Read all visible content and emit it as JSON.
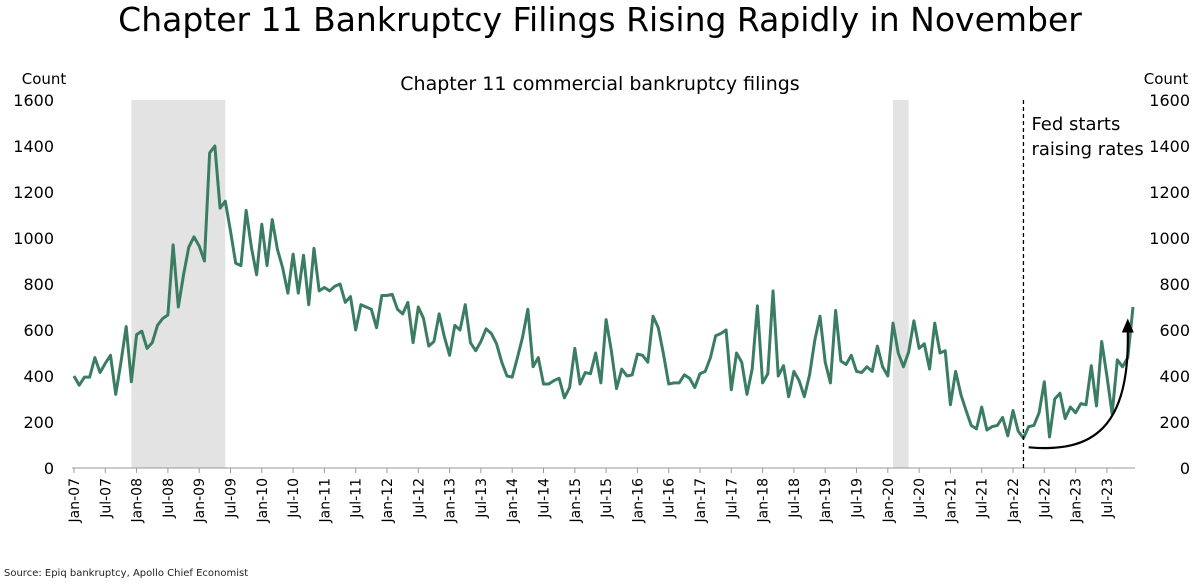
{
  "title": "Chapter 11 Bankruptcy Filings Rising Rapidly in November",
  "source": "Source: Epiq bankruptcy, Apollo Chief Economist",
  "colors": {
    "line": "#3a7d63",
    "recession": "#e3e3e3",
    "axis": "#000000"
  },
  "chart_data": {
    "type": "line",
    "title": "Chapter 11 commercial bankruptcy filings",
    "ylabel_left": "Count",
    "ylabel_right": "Count",
    "xlabel": "",
    "ylim": [
      0,
      1600
    ],
    "yticks": [
      0,
      200,
      400,
      600,
      800,
      1000,
      1200,
      1400,
      1600
    ],
    "start": "Jan-07",
    "x_tick_labels": [
      "Jan-07",
      "Jul-07",
      "Jan-08",
      "Jul-08",
      "Jan-09",
      "Jul-09",
      "Jan-10",
      "Jul-10",
      "Jan-11",
      "Jul-11",
      "Jan-12",
      "Jul-12",
      "Jan-13",
      "Jul-13",
      "Jan-14",
      "Jul-14",
      "Jan-15",
      "Jul-15",
      "Jan-16",
      "Jul-16",
      "Jan-17",
      "Jul-17",
      "Jan-18",
      "Jul-18",
      "Jan-19",
      "Jul-19",
      "Jan-20",
      "Jul-20",
      "Jan-21",
      "Jul-21",
      "Jan-22",
      "Jul-22",
      "Jan-23",
      "Jul-23"
    ],
    "recessions": [
      {
        "start_index": 11,
        "end_index": 29
      },
      {
        "start_index": 157,
        "end_index": 160
      }
    ],
    "annotation": {
      "text_lines": [
        "Fed starts",
        "raising rates"
      ],
      "month_index": 182
    },
    "arrow": {
      "from_index": 183,
      "from_value": 90,
      "to_index": 202,
      "to_value": 650
    },
    "series": [
      {
        "name": "Chapter 11 commercial bankruptcy filings",
        "values": [
          400,
          360,
          395,
          395,
          480,
          415,
          455,
          490,
          320,
          460,
          615,
          375,
          580,
          595,
          520,
          545,
          620,
          650,
          665,
          970,
          700,
          840,
          960,
          1005,
          965,
          900,
          1370,
          1400,
          1130,
          1160,
          1030,
          890,
          880,
          1120,
          960,
          840,
          1060,
          880,
          1080,
          950,
          870,
          760,
          930,
          760,
          925,
          710,
          955,
          770,
          785,
          770,
          790,
          800,
          720,
          745,
          600,
          710,
          700,
          690,
          610,
          750,
          750,
          755,
          690,
          670,
          720,
          545,
          700,
          650,
          530,
          550,
          670,
          570,
          490,
          620,
          600,
          710,
          545,
          510,
          550,
          605,
          585,
          540,
          460,
          400,
          395,
          480,
          570,
          690,
          440,
          480,
          365,
          365,
          380,
          390,
          305,
          350,
          520,
          365,
          415,
          410,
          500,
          370,
          645,
          510,
          345,
          430,
          400,
          405,
          495,
          490,
          460,
          660,
          610,
          495,
          365,
          370,
          370,
          405,
          390,
          350,
          410,
          420,
          480,
          575,
          585,
          600,
          340,
          500,
          460,
          320,
          430,
          705,
          370,
          410,
          770,
          400,
          445,
          310,
          420,
          380,
          310,
          405,
          555,
          660,
          460,
          370,
          685,
          465,
          450,
          490,
          420,
          415,
          440,
          420,
          530,
          440,
          400,
          630,
          500,
          440,
          505,
          640,
          520,
          540,
          430,
          630,
          500,
          510,
          275,
          420,
          320,
          250,
          185,
          170,
          265,
          165,
          180,
          185,
          220,
          140,
          250,
          160,
          130,
          180,
          185,
          240,
          375,
          135,
          300,
          325,
          215,
          265,
          240,
          280,
          275,
          445,
          270,
          550,
          400,
          235,
          470,
          440,
          480,
          700
        ]
      }
    ]
  }
}
